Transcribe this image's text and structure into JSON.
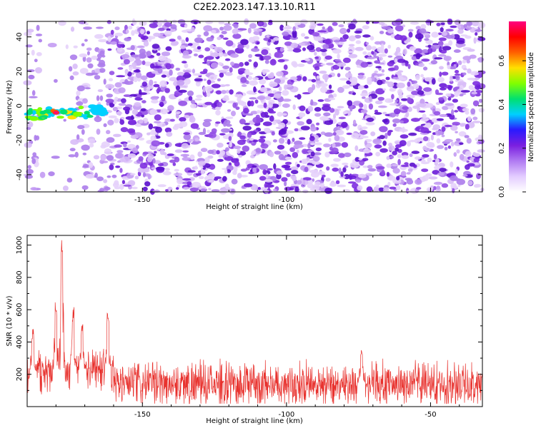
{
  "title": "C2E2.2023.147.13.10.R11",
  "colors": {
    "snr_line": "#e8322e",
    "cmap": [
      "#ffffff",
      "#e3ccff",
      "#b07af2",
      "#7a1fe0",
      "#2a1aff",
      "#00d0ff",
      "#00e070",
      "#80ff00",
      "#ffe000",
      "#ff6000",
      "#ff0000",
      "#ff0080"
    ]
  },
  "chart_data": [
    {
      "type": "heatmap",
      "xlabel": "Height of straight line (km)",
      "ylabel": "Frequency (Hz)",
      "xlim": [
        -190,
        -32
      ],
      "ylim": [
        -50,
        49
      ],
      "xticks": [
        -150,
        -100,
        -50
      ],
      "yticks": [
        -40,
        -20,
        0,
        20,
        40
      ],
      "grid": false,
      "colorbar": {
        "label": "Normalized spectral amplitude",
        "range": [
          0,
          0.78
        ],
        "ticks": [
          "0.0",
          "0.2",
          "0.4",
          "0.6"
        ]
      },
      "peak": {
        "x_range": [
          -190,
          -162
        ],
        "y_center": -4,
        "max_at_x": -180,
        "value": 0.75
      }
    },
    {
      "type": "line",
      "xlabel": "Height of straight line (km)",
      "ylabel": "SNR (10 * v/v)",
      "xlim": [
        -190,
        -32
      ],
      "ylim": [
        0,
        1060
      ],
      "xticks": [
        -150,
        -100,
        -50
      ],
      "yticks": [
        200,
        400,
        600,
        800,
        1000
      ],
      "grid": false,
      "baseline_mean": 140,
      "peaks": [
        {
          "x": -178,
          "y": 1040
        },
        {
          "x": -180,
          "y": 650
        },
        {
          "x": -174,
          "y": 620
        },
        {
          "x": -171,
          "y": 510
        },
        {
          "x": -162,
          "y": 580
        },
        {
          "x": -188,
          "y": 490
        },
        {
          "x": -74,
          "y": 370
        }
      ]
    }
  ]
}
